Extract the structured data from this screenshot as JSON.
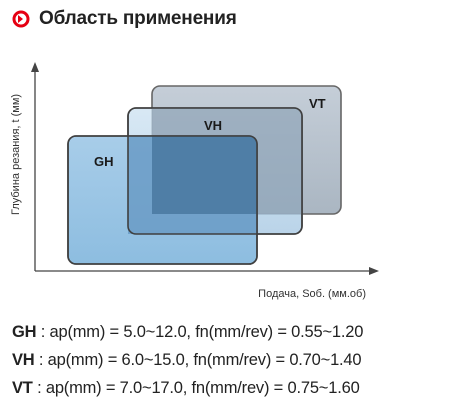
{
  "header": {
    "title": "Область применения",
    "icon": "red-circle-arrow-icon",
    "icon_color": "#e60012"
  },
  "axes": {
    "y_label": "Глубина резания, t (мм)",
    "x_label": "Подача, Sоб. (мм.об)"
  },
  "regions": [
    {
      "label": "GH",
      "color": "#4d8fc0"
    },
    {
      "label": "VH",
      "color": "#4f7ea6"
    },
    {
      "label": "VT",
      "color": "#5d6f82"
    }
  ],
  "legend": [
    {
      "grade": "GH",
      "text": " : ap(mm) = 5.0~12.0, fn(mm/rev) = 0.55~1.20"
    },
    {
      "grade": "VH",
      "text": " : ap(mm) = 6.0~15.0, fn(mm/rev) = 0.70~1.40"
    },
    {
      "grade": "VT",
      "text": " : ap(mm) = 7.0~17.0, fn(mm/rev) = 0.75~1.60"
    }
  ]
}
